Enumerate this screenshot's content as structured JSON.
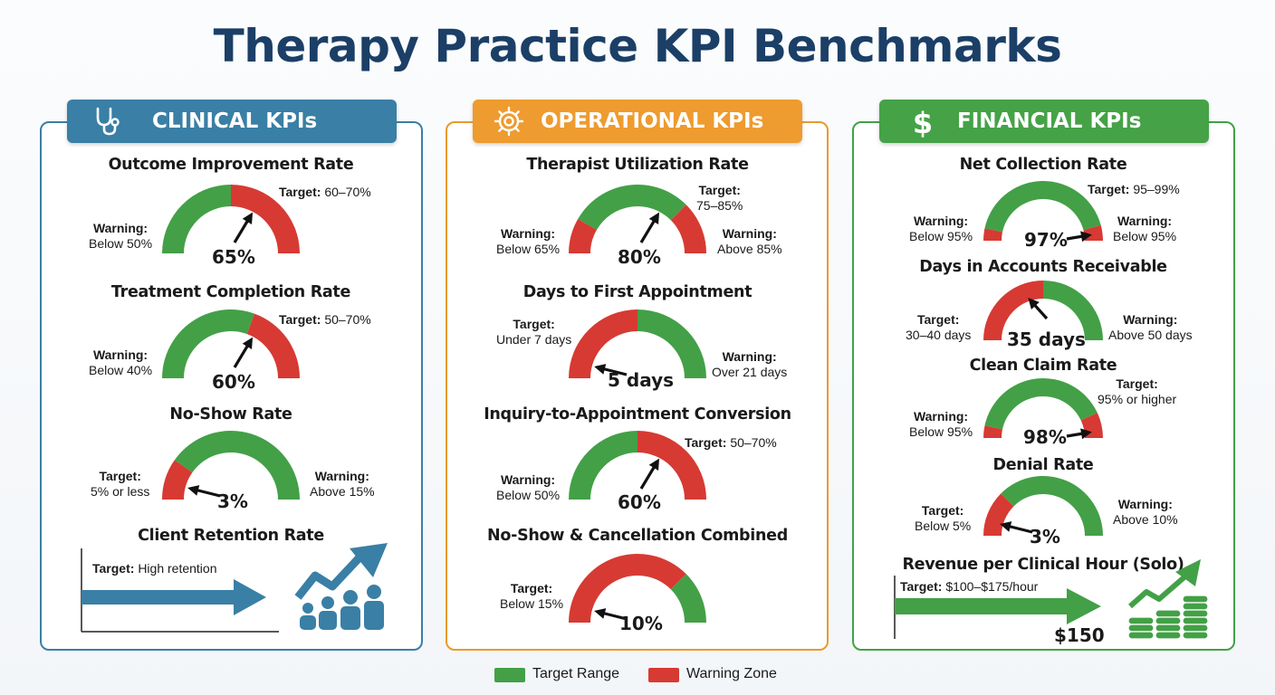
{
  "title": "Therapy Practice KPI Benchmarks",
  "colors": {
    "target": "#43a047",
    "warning": "#d63a33",
    "clinical": "#3a7fa5",
    "operational": "#ee9b2f",
    "financial": "#45a247"
  },
  "legend": {
    "target": "Target Range",
    "warning": "Warning Zone"
  },
  "clinical": {
    "header": "CLINICAL KPIs",
    "icon": "stethoscope-icon",
    "outcome": {
      "title": "Outcome Improvement Rate",
      "target_label": "Target:",
      "target": "60–70%",
      "warning_label": "Warning:",
      "warning": "Below 50%",
      "value": "65%"
    },
    "completion": {
      "title": "Treatment Completion Rate",
      "target_label": "Target:",
      "target": "50–70%",
      "warning_label": "Warning:",
      "warning": "Below 40%",
      "value": "60%"
    },
    "noshow": {
      "title": "No-Show Rate",
      "target_label": "Target:",
      "target": "5% or less",
      "warning_label": "Warning:",
      "warning": "Above 15%",
      "value": "3%"
    },
    "retention": {
      "title": "Client Retention Rate",
      "target_label": "Target:",
      "target": "High retention"
    }
  },
  "operational": {
    "header": "OPERATIONAL KPIs",
    "icon": "gear-icon",
    "utilization": {
      "title": "Therapist Utilization Rate",
      "target_label": "Target:",
      "target": "75–85%",
      "warning_left_label": "Warning:",
      "warning_left": "Below 65%",
      "warning_right_label": "Warning:",
      "warning_right": "Above 85%",
      "value": "80%"
    },
    "first_appt": {
      "title": "Days to First Appointment",
      "target_label": "Target:",
      "target": "Under 7 days",
      "warning_label": "Warning:",
      "warning": "Over 21 days",
      "value": "5 days"
    },
    "conversion": {
      "title": "Inquiry-to-Appointment Conversion",
      "target_label": "Target:",
      "target": "50–70%",
      "warning_label": "Warning:",
      "warning": "Below 50%",
      "value": "60%"
    },
    "combined": {
      "title": "No-Show & Cancellation Combined",
      "target_label": "Target:",
      "target": "Below 15%",
      "value": "10%"
    }
  },
  "financial": {
    "header": "FINANCIAL KPIs",
    "icon": "dollar-icon",
    "collection": {
      "title": "Net Collection Rate",
      "target_label": "Target:",
      "target": "95–99%",
      "warning_left_label": "Warning:",
      "warning_left": "Below 95%",
      "warning_right_label": "Warning:",
      "warning_right": "Below 95%",
      "value": "97%"
    },
    "ar_days": {
      "title": "Days in Accounts Receivable",
      "target_label": "Target:",
      "target": "30–40 days",
      "warning_label": "Warning:",
      "warning": "Above 50 days",
      "value": "35 days"
    },
    "clean_claim": {
      "title": "Clean Claim Rate",
      "target_label": "Target:",
      "target": "95% or higher",
      "warning_label": "Warning:",
      "warning": "Below 95%",
      "value": "98%"
    },
    "denial": {
      "title": "Denial Rate",
      "target_label": "Target:",
      "target": "Below 5%",
      "warning_label": "Warning:",
      "warning": "Above 10%",
      "value": "3%"
    },
    "revenue": {
      "title": "Revenue per Clinical Hour (Solo)",
      "target_label": "Target:",
      "target": "$100–$175/hour",
      "value": "$150"
    }
  }
}
